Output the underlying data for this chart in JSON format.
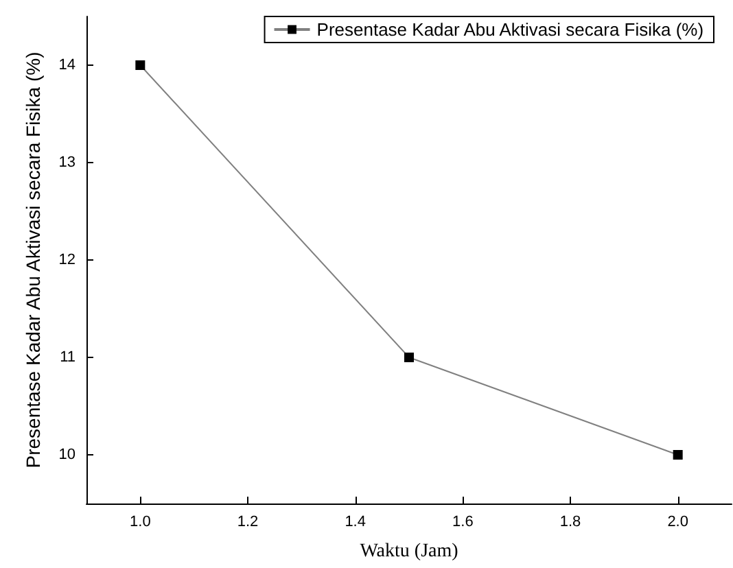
{
  "chart_data": {
    "type": "line",
    "xlabel": "Waktu (Jam)",
    "ylabel": "Presentase Kadar Abu Aktivasi secara Fisika (%)",
    "x": [
      1.0,
      1.5,
      2.0
    ],
    "series": [
      {
        "name": "Presentase Kadar Abu Aktivasi secara Fisika (%)",
        "color": "#000000",
        "values": [
          14,
          11,
          10
        ]
      }
    ],
    "xlim": [
      0.9,
      2.1
    ],
    "xticks": [
      {
        "value": 1.0,
        "label": "1.0"
      },
      {
        "value": 1.2,
        "label": "1.2"
      },
      {
        "value": 1.4,
        "label": "1.4"
      },
      {
        "value": 1.6,
        "label": "1.6"
      },
      {
        "value": 1.8,
        "label": "1.8"
      },
      {
        "value": 2.0,
        "label": "2.0"
      }
    ],
    "ylim": [
      9.5,
      14.5
    ],
    "yticks": [
      10,
      11,
      12,
      13,
      14
    ],
    "grid": false,
    "legend": "top right",
    "marker": "square",
    "line_style": "solid"
  }
}
